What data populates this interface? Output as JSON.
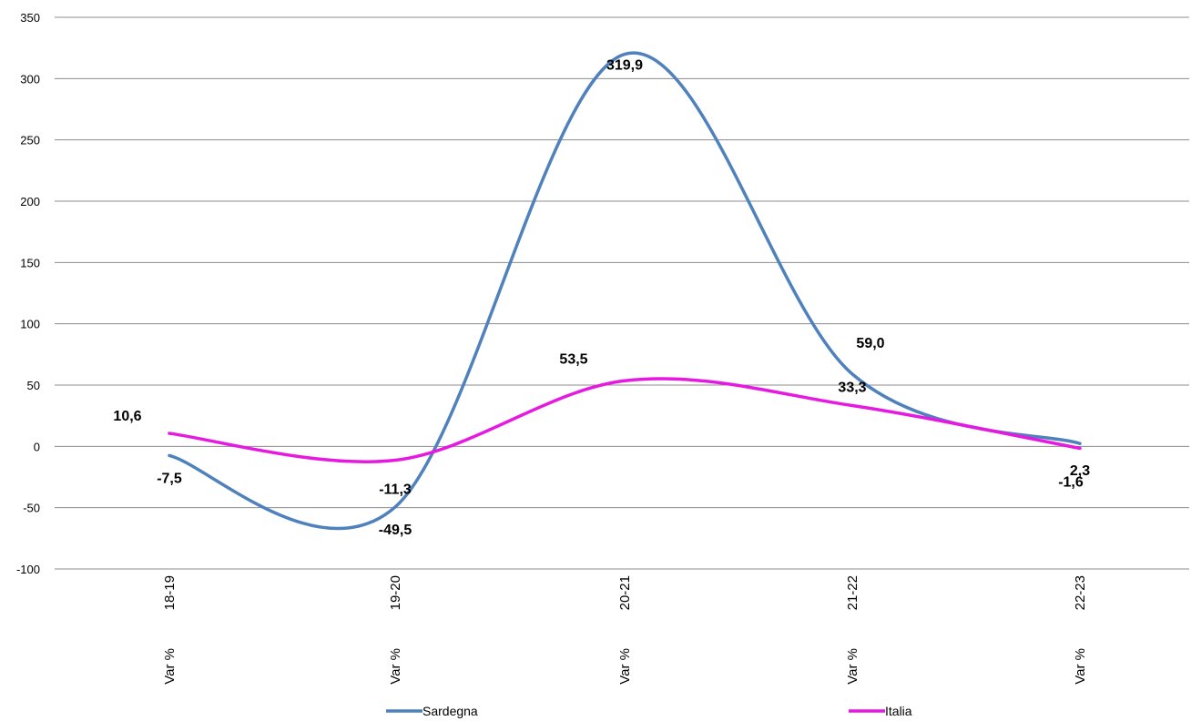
{
  "chart_data": {
    "type": "line",
    "categories": [
      "18-19",
      "19-20",
      "20-21",
      "21-22",
      "22-23"
    ],
    "category_sublabel": "Var %",
    "series": [
      {
        "name": "Sardegna",
        "values": [
          -7.5,
          -49.5,
          319.9,
          59.0,
          2.3
        ],
        "labels": [
          "-7,5",
          "-49,5",
          "319,9",
          "59,0",
          "2,3"
        ],
        "color": "#4f81bd"
      },
      {
        "name": "Italia",
        "values": [
          10.6,
          -11.3,
          53.5,
          33.3,
          -1.6
        ],
        "labels": [
          "10,6",
          "-11,3",
          "53,5",
          "33,3",
          "-1,6"
        ],
        "color": "#e619e0"
      }
    ],
    "y_ticks": [
      "350",
      "300",
      "250",
      "200",
      "150",
      "100",
      "50",
      "0",
      "-50",
      "-100"
    ],
    "ylim": [
      -100,
      350
    ],
    "grid": true,
    "smooth": true,
    "legend_position": "bottom"
  }
}
